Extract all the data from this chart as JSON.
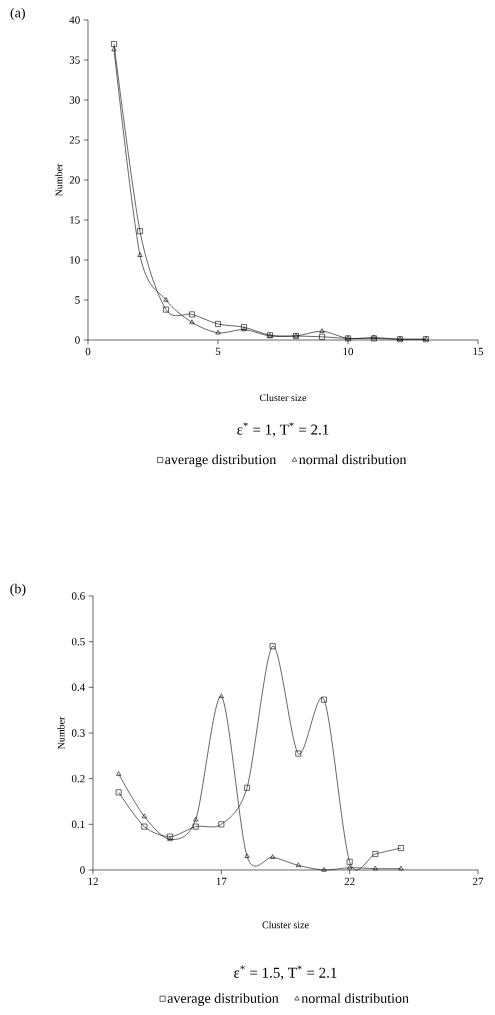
{
  "chart_data": [
    {
      "type": "line",
      "title": "(a)",
      "xlabel": "Cluster size",
      "ylabel": "Number",
      "annotations": [
        "ε$^{*}$ = 1, T$^{*}$ = 2.1"
      ],
      "x": [
        1,
        2,
        3,
        4,
        5,
        6,
        7,
        8,
        9,
        10,
        11,
        12,
        13
      ],
      "series": [
        {
          "name": "average distribution",
          "color": "#000000",
          "marker": "square",
          "values": [
            37,
            13.6,
            3.8,
            3.2,
            2.0,
            1.6,
            0.6,
            0.5,
            0.4,
            0.2,
            0.2,
            0.1,
            0.1
          ]
        },
        {
          "name": "normal distribution",
          "color": "#000000",
          "marker": "triangle",
          "values": [
            36.3,
            10.6,
            5.0,
            2.2,
            0.9,
            1.3,
            0.5,
            0.5,
            1.1,
            0.2,
            0.3,
            0.1,
            0.1
          ]
        }
      ],
      "xlim": [
        0,
        15
      ],
      "xticks": [
        0,
        5,
        10,
        15
      ],
      "ylim": [
        0,
        40
      ],
      "yticks": [
        0,
        5,
        10,
        15,
        20,
        25,
        30,
        35,
        40
      ],
      "grid": false,
      "legend": "bottom"
    },
    {
      "type": "line",
      "title": "(b)",
      "xlabel": "Cluster size",
      "ylabel": "Number",
      "annotations": [
        "ε$^{*}$ = 1.5, T$^{*}$ = 2.1"
      ],
      "x": [
        13,
        14,
        15,
        16,
        17,
        18,
        19,
        20,
        21,
        22,
        23,
        24
      ],
      "series": [
        {
          "name": "average distribution",
          "color": "#000000",
          "marker": "square",
          "values": [
            0.17,
            0.095,
            0.073,
            0.095,
            0.1,
            0.18,
            0.49,
            0.255,
            0.373,
            0.018,
            0.035,
            0.048
          ]
        },
        {
          "name": "normal distribution",
          "color": "#000000",
          "marker": "triangle",
          "values": [
            0.21,
            0.117,
            0.067,
            0.11,
            0.38,
            0.03,
            0.028,
            0.01,
            0.0,
            0.005,
            0.003,
            0.003
          ]
        }
      ],
      "xlim": [
        12,
        27
      ],
      "xticks": [
        12,
        17,
        22,
        27
      ],
      "ylim": [
        0,
        0.6
      ],
      "yticks": [
        0,
        0.1,
        0.2,
        0.3,
        0.4,
        0.5,
        0.6
      ],
      "grid": false,
      "legend": "bottom"
    }
  ]
}
